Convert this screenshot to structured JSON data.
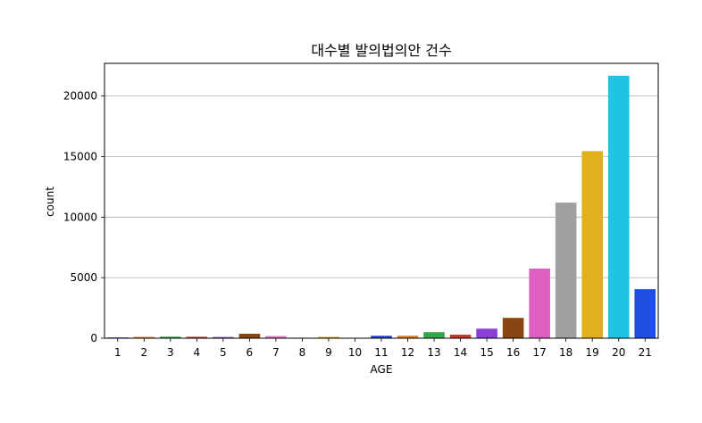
{
  "chart_data": {
    "type": "bar",
    "title": "대수별 발의법의안 건수",
    "xlabel": "AGE",
    "ylabel": "count",
    "categories": [
      "1",
      "2",
      "3",
      "4",
      "5",
      "6",
      "7",
      "8",
      "9",
      "10",
      "11",
      "12",
      "13",
      "14",
      "15",
      "16",
      "17",
      "18",
      "19",
      "20",
      "21"
    ],
    "values": [
      60,
      110,
      130,
      120,
      100,
      370,
      180,
      40,
      110,
      10,
      200,
      210,
      500,
      290,
      790,
      1680,
      5750,
      11200,
      15450,
      21680,
      4050
    ],
    "colors": [
      "#1f3fd6",
      "#d9822b",
      "#2ea84a",
      "#c0392b",
      "#8e44ad",
      "#8b4513",
      "#e377c2",
      "#7f7f7f",
      "#d4ac0d",
      "#17becf",
      "#1f3fd6",
      "#d9822b",
      "#2ea84a",
      "#c0392b",
      "#8a3fd6",
      "#8b4513",
      "#de5fbf",
      "#a0a0a0",
      "#e0b020",
      "#1fc4e3",
      "#1f4fe0"
    ],
    "ylim": [
      0,
      22700
    ],
    "yticks": [
      0,
      5000,
      10000,
      15000,
      20000
    ],
    "ytick_labels": [
      "0",
      "5000",
      "10000",
      "15000",
      "20000"
    ],
    "grid": "y"
  }
}
